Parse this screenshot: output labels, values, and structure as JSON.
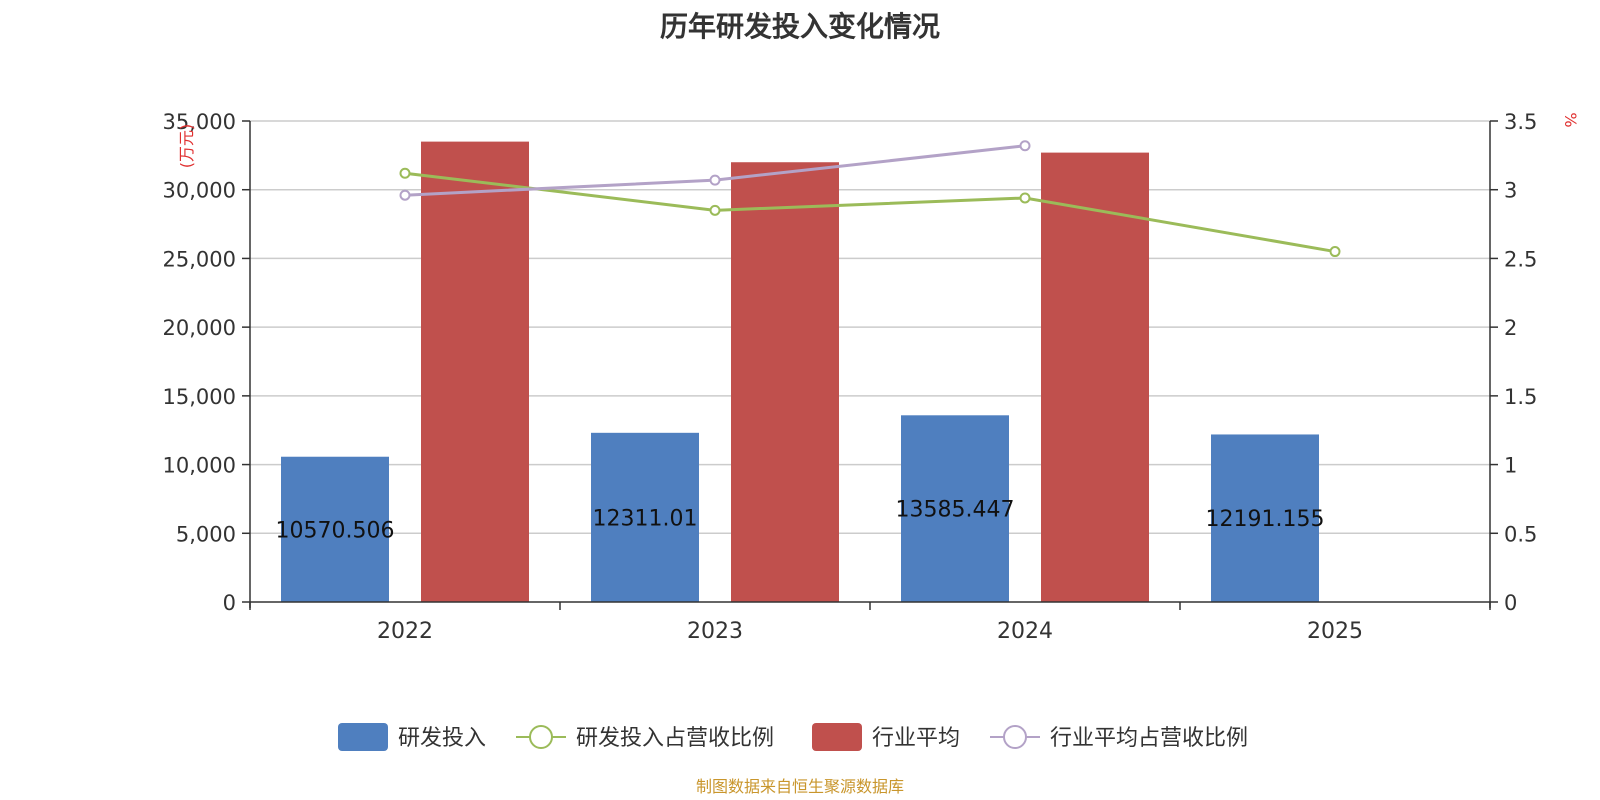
{
  "chart_data": {
    "type": "bar",
    "title": "历年研发投入变化情况",
    "categories": [
      "2022",
      "2023",
      "2024",
      "2025"
    ],
    "y_left": {
      "unit_label": "(万元)",
      "min": 0,
      "max": 35000,
      "step": 5000,
      "ticks": [
        "0",
        "5,000",
        "10,000",
        "15,000",
        "20,000",
        "25,000",
        "30,000",
        "35,000"
      ]
    },
    "y_right": {
      "unit_label": "%",
      "min": 0,
      "max": 3.5,
      "step": 0.5,
      "ticks": [
        "0",
        "0.5",
        "1",
        "1.5",
        "2",
        "2.5",
        "3",
        "3.5"
      ]
    },
    "series": [
      {
        "name": "研发投入",
        "type": "bar",
        "axis": "left",
        "color": "#4f7fbf",
        "values": [
          10570.506,
          12311.01,
          13585.447,
          12191.155
        ],
        "labels": [
          "10570.506",
          "12311.01",
          "13585.447",
          "12191.155"
        ]
      },
      {
        "name": "研发投入占营收比例",
        "type": "line",
        "axis": "right",
        "color": "#9bbb59",
        "values": [
          3.12,
          2.85,
          2.94,
          2.55
        ]
      },
      {
        "name": "行业平均",
        "type": "bar",
        "axis": "left",
        "color": "#c0504d",
        "values": [
          33500,
          32000,
          32700,
          null
        ]
      },
      {
        "name": "行业平均占营收比例",
        "type": "line",
        "axis": "right",
        "color": "#b3a2c7",
        "values": [
          2.96,
          3.07,
          3.32,
          null
        ]
      }
    ],
    "grid": true,
    "legend": "bottom"
  },
  "source_note": "制图数据来自恒生聚源数据库",
  "colors": {
    "axis_unit": "#e03030",
    "source": "#c9962c",
    "grid": "#cccccc",
    "axis": "#333333"
  }
}
